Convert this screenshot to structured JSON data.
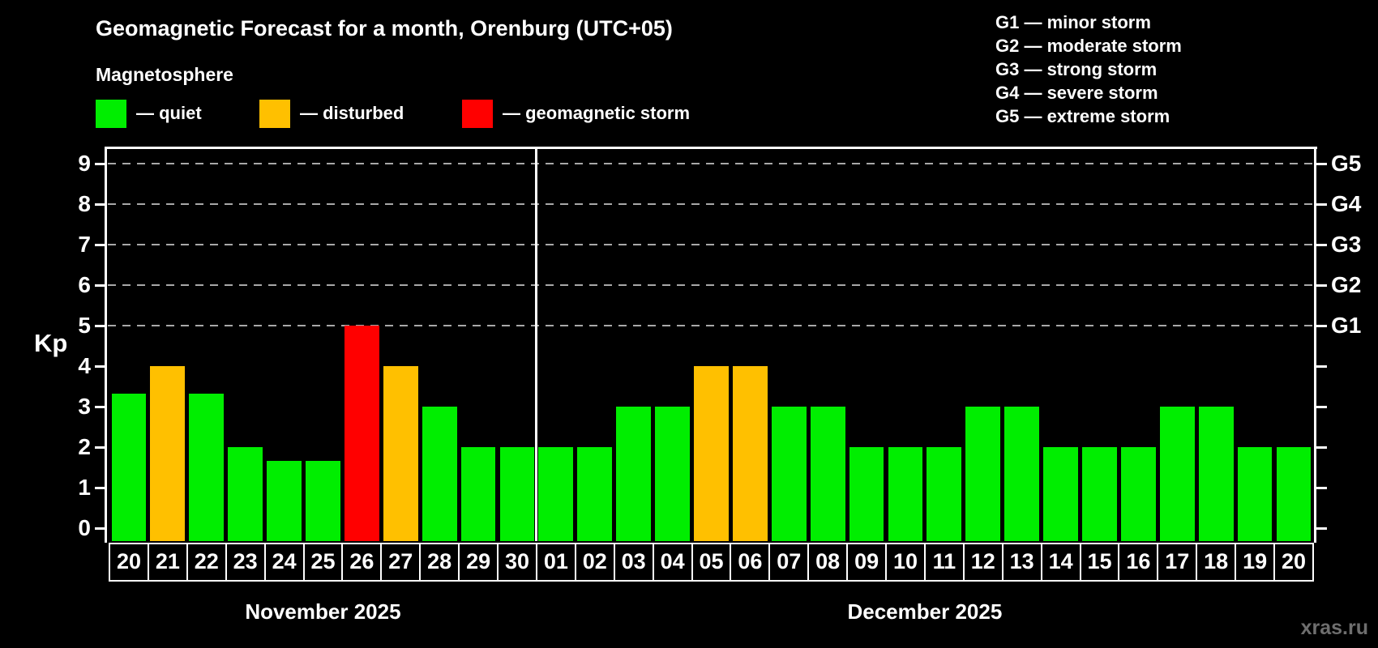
{
  "header": {
    "title": "Geomagnetic Forecast for a month, Orenburg (UTC+05)",
    "subtitle": "Magnetosphere"
  },
  "legend": {
    "items": [
      {
        "key": "quiet",
        "label": "— quiet",
        "color": "#00ee00"
      },
      {
        "key": "disturbed",
        "label": "— disturbed",
        "color": "#ffc000"
      },
      {
        "key": "storm",
        "label": "— geomagnetic storm",
        "color": "#ff0000"
      }
    ]
  },
  "g_legend": {
    "items": [
      "G1 — minor storm",
      "G2 — moderate storm",
      "G3 — strong storm",
      "G4 — severe storm",
      "G5 — extreme storm"
    ]
  },
  "watermark": "xras.ru",
  "chart_data": {
    "type": "bar",
    "ylabel": "Kp",
    "y_ticks": [
      0,
      1,
      2,
      3,
      4,
      5,
      6,
      7,
      8,
      9
    ],
    "ylim": [
      -0.32,
      9.4
    ],
    "grid_levels": [
      5,
      6,
      7,
      8,
      9
    ],
    "right_axis_labels": [
      {
        "label": "G1",
        "kp": 5
      },
      {
        "label": "G2",
        "kp": 6
      },
      {
        "label": "G3",
        "kp": 7
      },
      {
        "label": "G4",
        "kp": 8
      },
      {
        "label": "G5",
        "kp": 9
      }
    ],
    "months": [
      {
        "label": "November 2025",
        "count": 11
      },
      {
        "label": "December 2025",
        "count": 20
      }
    ],
    "bars": [
      {
        "day": "20",
        "kp": 3.33,
        "status": "quiet"
      },
      {
        "day": "21",
        "kp": 4,
        "status": "disturbed"
      },
      {
        "day": "22",
        "kp": 3.33,
        "status": "quiet"
      },
      {
        "day": "23",
        "kp": 2,
        "status": "quiet"
      },
      {
        "day": "24",
        "kp": 1.67,
        "status": "quiet"
      },
      {
        "day": "25",
        "kp": 1.67,
        "status": "quiet"
      },
      {
        "day": "26",
        "kp": 5,
        "status": "storm"
      },
      {
        "day": "27",
        "kp": 4,
        "status": "disturbed"
      },
      {
        "day": "28",
        "kp": 3,
        "status": "quiet"
      },
      {
        "day": "29",
        "kp": 2,
        "status": "quiet"
      },
      {
        "day": "30",
        "kp": 2,
        "status": "quiet"
      },
      {
        "day": "01",
        "kp": 2,
        "status": "quiet"
      },
      {
        "day": "02",
        "kp": 2,
        "status": "quiet"
      },
      {
        "day": "03",
        "kp": 3,
        "status": "quiet"
      },
      {
        "day": "04",
        "kp": 3,
        "status": "quiet"
      },
      {
        "day": "05",
        "kp": 4,
        "status": "disturbed"
      },
      {
        "day": "06",
        "kp": 4,
        "status": "disturbed"
      },
      {
        "day": "07",
        "kp": 3,
        "status": "quiet"
      },
      {
        "day": "08",
        "kp": 3,
        "status": "quiet"
      },
      {
        "day": "09",
        "kp": 2,
        "status": "quiet"
      },
      {
        "day": "10",
        "kp": 2,
        "status": "quiet"
      },
      {
        "day": "11",
        "kp": 2,
        "status": "quiet"
      },
      {
        "day": "12",
        "kp": 3,
        "status": "quiet"
      },
      {
        "day": "13",
        "kp": 3,
        "status": "quiet"
      },
      {
        "day": "14",
        "kp": 2,
        "status": "quiet"
      },
      {
        "day": "15",
        "kp": 2,
        "status": "quiet"
      },
      {
        "day": "16",
        "kp": 2,
        "status": "quiet"
      },
      {
        "day": "17",
        "kp": 3,
        "status": "quiet"
      },
      {
        "day": "18",
        "kp": 3,
        "status": "quiet"
      },
      {
        "day": "19",
        "kp": 2,
        "status": "quiet"
      },
      {
        "day": "20",
        "kp": 2,
        "status": "quiet"
      }
    ]
  }
}
